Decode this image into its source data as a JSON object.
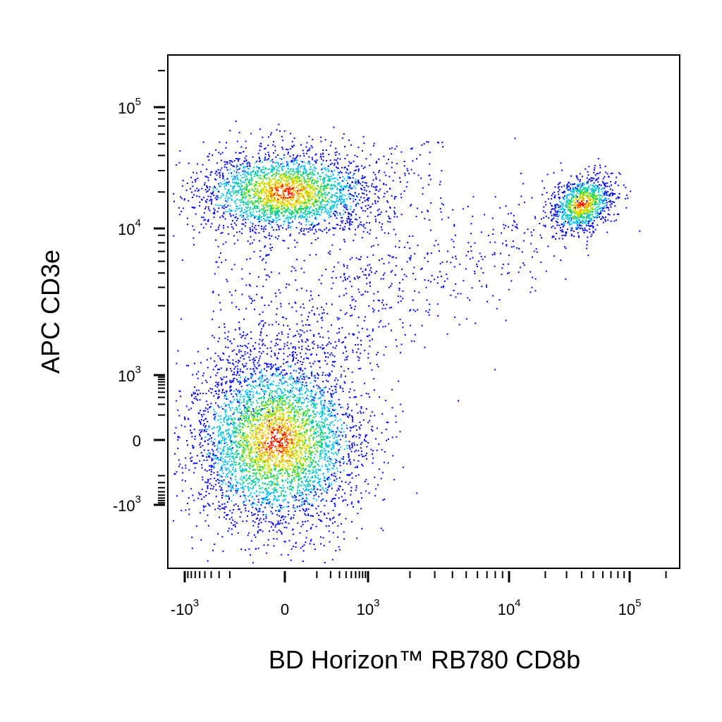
{
  "chart_data": {
    "type": "scatter",
    "style": "density-pseudocolor",
    "xlabel": "BD Horizon™ RB780 CD8b",
    "ylabel": "APC CD3e",
    "axis_scale": "biexponential",
    "x_ticks": [
      {
        "value": -1000,
        "base": "-10",
        "exp": "3"
      },
      {
        "value": 0,
        "base": "0",
        "exp": ""
      },
      {
        "value": 1000,
        "base": "10",
        "exp": "3"
      },
      {
        "value": 10000,
        "base": "10",
        "exp": "4"
      },
      {
        "value": 100000,
        "base": "10",
        "exp": "5"
      }
    ],
    "y_ticks": [
      {
        "value": -1000,
        "base": "-10",
        "exp": "3"
      },
      {
        "value": 0,
        "base": "0",
        "exp": ""
      },
      {
        "value": 1000,
        "base": "10",
        "exp": "3"
      },
      {
        "value": 10000,
        "base": "10",
        "exp": "4"
      },
      {
        "value": 100000,
        "base": "10",
        "exp": "5"
      }
    ],
    "populations": [
      {
        "cd8b": 0,
        "cd3e": 20000,
        "density": "high"
      },
      {
        "cd8b": 0,
        "cd3e": 0,
        "density": "high"
      },
      {
        "cd8b": 40000,
        "cd3e": 16000,
        "density": "high"
      }
    ],
    "density_colors": [
      "#0000ff",
      "#00c0ff",
      "#00d070",
      "#b0e000",
      "#ffe000",
      "#ff8000",
      "#ff0000"
    ],
    "grid": false,
    "legend": "none"
  }
}
